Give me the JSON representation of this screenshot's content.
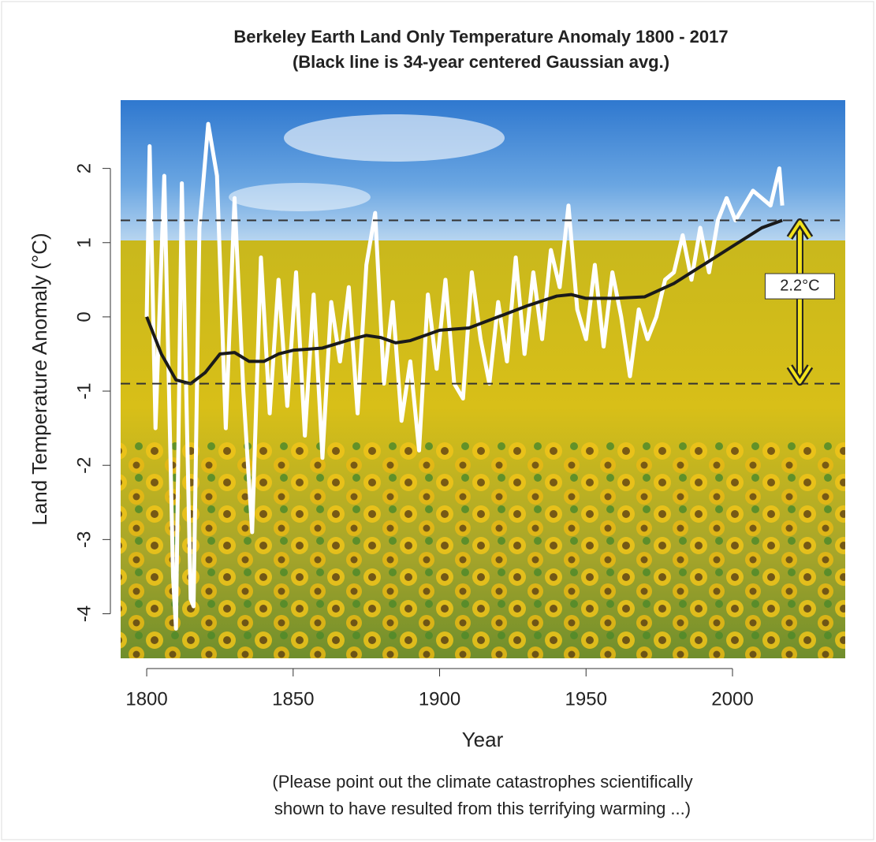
{
  "chart_data": {
    "type": "line",
    "title": [
      "Berkeley Earth Land Only Temperature Anomaly 1800 - 2017",
      "(Black line is 34-year centered Gaussian avg.)"
    ],
    "xlabel": "Year",
    "ylabel": "Land Temperature Anomaly (°C)",
    "footnote": [
      "(Please point out the climate catastrophes scientifically",
      "shown to have resulted from this terrifying warming ...)"
    ],
    "xlim": [
      1791.1,
      2038.5
    ],
    "ylim": [
      -4.6,
      2.92
    ],
    "xticks": [
      1800,
      1850,
      1900,
      1950,
      2000
    ],
    "yticks": [
      -4,
      -3,
      -2,
      -1,
      0,
      1,
      2
    ],
    "hlines": [
      1.3,
      -0.9
    ],
    "annotation": {
      "text": "2.2°C",
      "x": 2023
    },
    "series": [
      {
        "color": "#ffffff",
        "x": [
          1800,
          1801,
          1803,
          1806,
          1809,
          1810,
          1812,
          1815,
          1816,
          1818,
          1821,
          1824,
          1827,
          1830,
          1833,
          1836,
          1839,
          1842,
          1845,
          1848,
          1851,
          1854,
          1857,
          1860,
          1863,
          1866,
          1869,
          1872,
          1875,
          1878,
          1881,
          1884,
          1887,
          1890,
          1893,
          1896,
          1899,
          1902,
          1905,
          1908,
          1911,
          1914,
          1917,
          1920,
          1923,
          1926,
          1929,
          1932,
          1935,
          1938,
          1941,
          1944,
          1947,
          1950,
          1953,
          1956,
          1959,
          1962,
          1965,
          1968,
          1971,
          1974,
          1977,
          1980,
          1983,
          1986,
          1989,
          1992,
          1995,
          1998,
          2001,
          2004,
          2007,
          2010,
          2013,
          2016,
          2017
        ],
        "values": [
          0,
          2.3,
          -1.5,
          1.9,
          -3.5,
          -4.2,
          1.8,
          -3.8,
          -3.9,
          1.2,
          2.6,
          1.9,
          -1.5,
          1.6,
          -1.0,
          -2.9,
          0.8,
          -1.3,
          0.5,
          -1.2,
          0.6,
          -1.6,
          0.3,
          -1.9,
          0.2,
          -0.6,
          0.4,
          -1.3,
          0.7,
          1.4,
          -0.9,
          0.2,
          -1.4,
          -0.6,
          -1.8,
          0.3,
          -0.7,
          0.5,
          -0.9,
          -1.1,
          0.6,
          -0.3,
          -0.9,
          0.2,
          -0.6,
          0.8,
          -0.5,
          0.6,
          -0.3,
          0.9,
          0.4,
          1.5,
          0.1,
          -0.3,
          0.7,
          -0.4,
          0.6,
          0.0,
          -0.8,
          0.1,
          -0.3,
          0.0,
          0.5,
          0.6,
          1.1,
          0.5,
          1.2,
          0.6,
          1.3,
          1.6,
          1.3,
          1.5,
          1.7,
          1.6,
          1.5,
          2.0,
          1.5
        ]
      },
      {
        "color": "#1a1a1a",
        "x": [
          1800,
          1805,
          1810,
          1815,
          1820,
          1825,
          1830,
          1835,
          1840,
          1845,
          1850,
          1860,
          1870,
          1875,
          1880,
          1885,
          1890,
          1895,
          1900,
          1910,
          1920,
          1930,
          1940,
          1945,
          1950,
          1960,
          1970,
          1980,
          1990,
          2000,
          2010,
          2017
        ],
        "values": [
          0,
          -0.5,
          -0.85,
          -0.9,
          -0.75,
          -0.5,
          -0.48,
          -0.6,
          -0.6,
          -0.5,
          -0.45,
          -0.42,
          -0.3,
          -0.25,
          -0.28,
          -0.35,
          -0.32,
          -0.25,
          -0.18,
          -0.15,
          0.0,
          0.15,
          0.28,
          0.3,
          0.25,
          0.25,
          0.27,
          0.45,
          0.7,
          0.95,
          1.2,
          1.3
        ]
      }
    ]
  }
}
